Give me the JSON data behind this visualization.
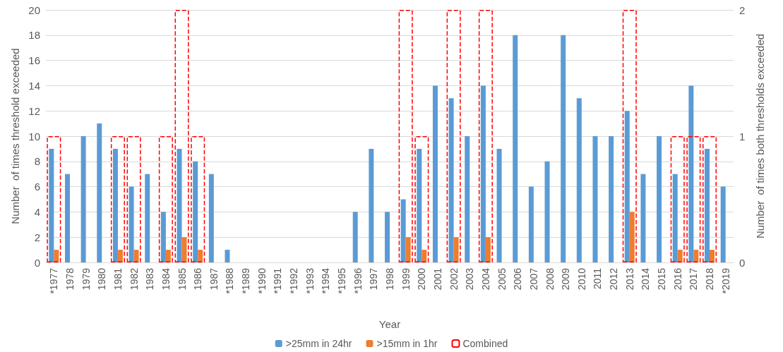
{
  "chart_data": {
    "type": "bar",
    "xlabel": "Year",
    "ylabel": "Number  of times threshold exceeded",
    "y2label": "Number  of times both thresholds exceeded",
    "categories": [
      "*1977",
      "1978",
      "1979",
      "1980",
      "1981",
      "1982",
      "1983",
      "1984",
      "1985",
      "1986",
      "1987",
      "*1988",
      "*1989",
      "*1990",
      "*1991",
      "*1992",
      "*1993",
      "*1994",
      "*1995",
      "*1996",
      "1997",
      "1998",
      "1999",
      "2000",
      "2001",
      "2002",
      "2003",
      "2004",
      "2005",
      "2006",
      "2007",
      "2008",
      "2009",
      "2010",
      "2011",
      "2012",
      "2013",
      "2014",
      "2015",
      "2016",
      "2017",
      "2018",
      "*2019"
    ],
    "series": [
      {
        "name": ">25mm in 24hr",
        "color": "#5b9bd5",
        "values": [
          9,
          7,
          10,
          11,
          9,
          6,
          7,
          4,
          9,
          8,
          7,
          1,
          0,
          0,
          0,
          0,
          0,
          0,
          0,
          4,
          9,
          4,
          5,
          9,
          14,
          13,
          10,
          14,
          9,
          18,
          6,
          8,
          18,
          13,
          10,
          10,
          12,
          7,
          10,
          7,
          14,
          9,
          6
        ]
      },
      {
        "name": ">15mm in 1hr",
        "color": "#ed7d31",
        "values": [
          1,
          0,
          0,
          0,
          1,
          1,
          0,
          1,
          2,
          1,
          0,
          0,
          0,
          0,
          0,
          0,
          0,
          0,
          0,
          0,
          0,
          0,
          2,
          1,
          0,
          2,
          0,
          2,
          0,
          0,
          0,
          0,
          0,
          0,
          0,
          0,
          4,
          0,
          0,
          1,
          1,
          1,
          0
        ]
      },
      {
        "name": "Combined",
        "color": "#ff0000",
        "axis": "y2",
        "line_style": "dashed",
        "values": [
          1,
          null,
          null,
          null,
          1,
          1,
          null,
          1,
          2,
          1,
          null,
          null,
          null,
          null,
          null,
          null,
          null,
          null,
          null,
          null,
          null,
          null,
          2,
          1,
          null,
          2,
          null,
          2,
          null,
          null,
          null,
          null,
          null,
          null,
          null,
          null,
          2,
          null,
          null,
          1,
          1,
          1,
          null
        ]
      }
    ],
    "ylim": [
      0,
      20
    ],
    "yticks": [
      0,
      2,
      4,
      6,
      8,
      10,
      12,
      14,
      16,
      18,
      20
    ],
    "y2lim": [
      0,
      2
    ],
    "y2ticks": [
      0,
      1,
      2
    ],
    "grid": "y",
    "legend": "bottom"
  }
}
